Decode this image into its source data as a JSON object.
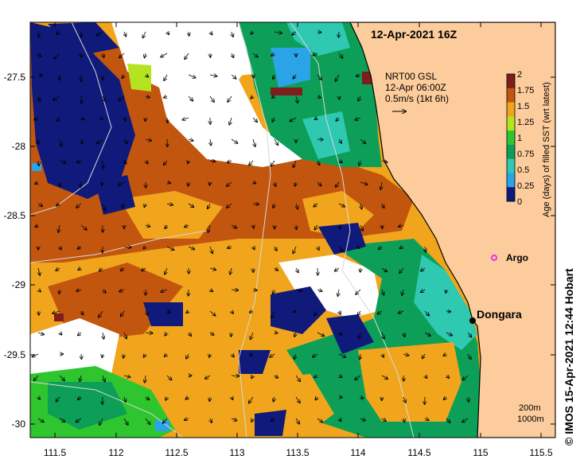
{
  "title": "12-Apr-2021 16Z",
  "current_info": {
    "line1": "NRT00 GSL",
    "line2": "12-Apr 06:00Z",
    "line3": "0.5m/s (1kt 6h)"
  },
  "colorbar": {
    "label": "Age (days) of filled SST (wrt latest)",
    "ticks": [
      "2",
      "1.75",
      "1.5",
      "1.25",
      "1",
      "0.75",
      "0.5",
      "0.25",
      "0"
    ],
    "colors": [
      "#7f1d1d",
      "#c2560e",
      "#f0a51c",
      "#b6e31f",
      "#2fc52f",
      "#0d9f58",
      "#2fc9b1",
      "#2aa4e6",
      "#101a7a"
    ]
  },
  "places": [
    {
      "name": "Dongara",
      "marker_color": "#000000"
    },
    {
      "name": "Argo",
      "marker_color": "#e633e6"
    }
  ],
  "x_axis": {
    "ticks": [
      "111.5",
      "112",
      "112.5",
      "113",
      "113.5",
      "114",
      "114.5",
      "115",
      "115.5"
    ]
  },
  "y_axis": {
    "ticks": [
      "-27.5",
      "-28",
      "-28.5",
      "-29",
      "-29.5",
      "-30"
    ]
  },
  "depth_legend": {
    "line1": "200m",
    "line2": "1000m"
  },
  "copyright": "© IMOS 15-Apr-2021 12:44 Hobart",
  "colors": {
    "land": "#fdcc9c",
    "coast": "#000000",
    "bathymetry": "#d8d8d8"
  }
}
